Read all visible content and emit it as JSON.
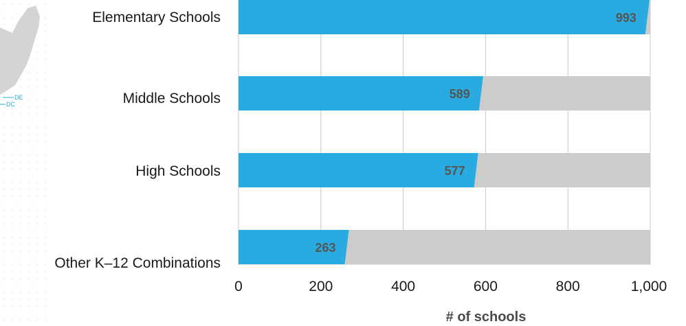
{
  "chart_data": {
    "type": "bar",
    "orientation": "horizontal",
    "categories": [
      "Elementary Schools",
      "Middle Schools",
      "High Schools",
      "Other K–12 Combinations"
    ],
    "values": [
      993,
      589,
      577,
      263
    ],
    "value_labels": [
      "993",
      "589",
      "577",
      "263"
    ],
    "max_value": 1000,
    "xlim": [
      0,
      1000
    ],
    "x_ticks": [
      0,
      200,
      400,
      600,
      800,
      1000
    ],
    "x_tick_labels": [
      "0",
      "200",
      "400",
      "600",
      "800",
      "1,000"
    ],
    "xlabel": "# of schools",
    "grid": true,
    "bar_color": "#29abe2",
    "track_color": "#cccccc"
  },
  "map_fragment": {
    "labels": [
      "DE",
      "DC"
    ],
    "color": "#29abe2"
  }
}
